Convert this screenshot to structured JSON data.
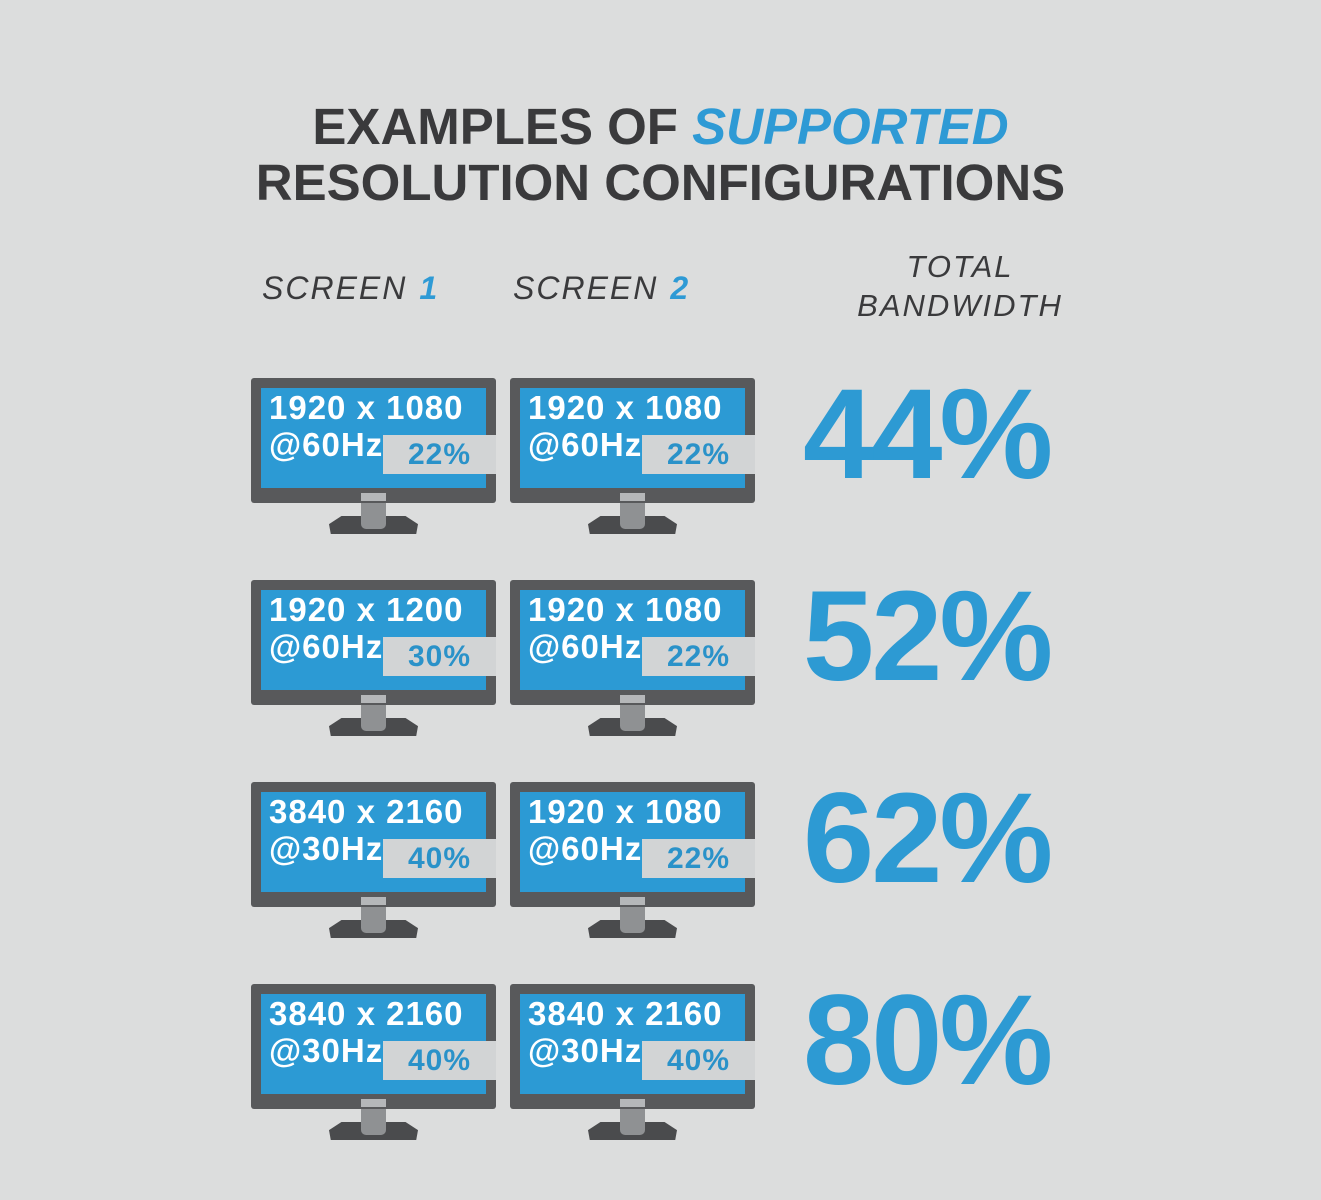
{
  "title": {
    "prefix": "EXAMPLES OF ",
    "highlight": "SUPPORTED",
    "line2": "RESOLUTION CONFIGURATIONS"
  },
  "headers": {
    "screen1_label": "SCREEN",
    "screen1_number": "1",
    "screen2_label": "SCREEN",
    "screen2_number": "2",
    "total_line1": "TOTAL",
    "total_line2": "BANDWIDTH"
  },
  "rows": [
    {
      "screen1": {
        "resolution": "1920 x 1080",
        "refresh": "@60Hz",
        "bandwidth": "22%"
      },
      "screen2": {
        "resolution": "1920 x 1080",
        "refresh": "@60Hz",
        "bandwidth": "22%"
      },
      "total": "44%"
    },
    {
      "screen1": {
        "resolution": "1920 x 1200",
        "refresh": "@60Hz",
        "bandwidth": "30%"
      },
      "screen2": {
        "resolution": "1920 x 1080",
        "refresh": "@60Hz",
        "bandwidth": "22%"
      },
      "total": "52%"
    },
    {
      "screen1": {
        "resolution": "3840 x 2160",
        "refresh": "@30Hz",
        "bandwidth": "40%"
      },
      "screen2": {
        "resolution": "1920 x 1080",
        "refresh": "@60Hz",
        "bandwidth": "22%"
      },
      "total": "62%"
    },
    {
      "screen1": {
        "resolution": "3840 x 2160",
        "refresh": "@30Hz",
        "bandwidth": "40%"
      },
      "screen2": {
        "resolution": "3840 x 2160",
        "refresh": "@30Hz",
        "bandwidth": "40%"
      },
      "total": "80%"
    }
  ],
  "colors": {
    "background": "#dcdddd",
    "accent_blue": "#2d9ad3",
    "dark_text": "#3a3a3c",
    "monitor_bezel": "#58595b",
    "screen_blue": "#2c9ad4",
    "bandwidth_bar_gray": "#d2d4d5",
    "bar_text_blue": "#2a92c9",
    "stand_neck": "#8f9193",
    "stand_base": "#4a4b4d",
    "bezel_logo": "#b5b7b9",
    "screen_text": "#ffffff"
  },
  "chart_data": {
    "type": "table",
    "title": "EXAMPLES OF SUPPORTED RESOLUTION CONFIGURATIONS",
    "columns": [
      "SCREEN 1",
      "SCREEN 2",
      "TOTAL BANDWIDTH"
    ],
    "rows": [
      [
        "1920 x 1080 @60Hz (22%)",
        "1920 x 1080 @60Hz (22%)",
        "44%"
      ],
      [
        "1920 x 1200 @60Hz (30%)",
        "1920 x 1080 @60Hz (22%)",
        "52%"
      ],
      [
        "3840 x 2160 @30Hz (40%)",
        "1920 x 1080 @60Hz (22%)",
        "62%"
      ],
      [
        "3840 x 2160 @30Hz (40%)",
        "3840 x 2160 @30Hz (40%)",
        "80%"
      ]
    ],
    "total_bandwidth_values_percent": [
      44,
      52,
      62,
      80
    ],
    "per_screen_bandwidth_percent": [
      [
        22,
        22
      ],
      [
        30,
        22
      ],
      [
        40,
        22
      ],
      [
        40,
        40
      ]
    ]
  }
}
